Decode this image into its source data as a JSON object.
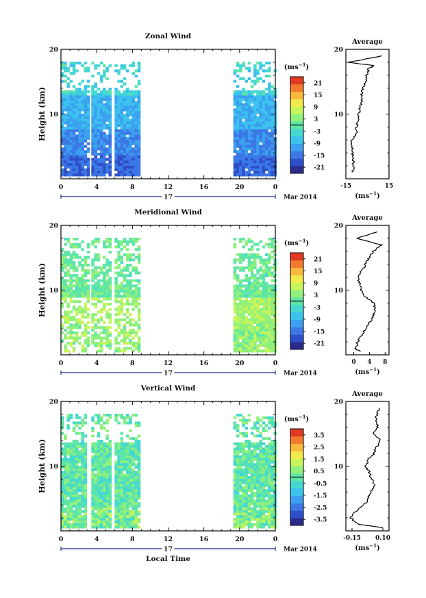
{
  "colors": {
    "colorbar": [
      "#2a2d8c",
      "#2f4fc8",
      "#3b78e6",
      "#3aa0ef",
      "#3dc1ee",
      "#45d8d0",
      "#5ee6a7",
      "#8ff07b",
      "#c6f55a",
      "#f4e94a",
      "#f8b83c",
      "#f27a2c",
      "#e03a22"
    ],
    "axis": "#000000",
    "time_axis_accent": "#1f2a8a"
  },
  "chart_data": [
    {
      "type": "heatmap",
      "title": "Zonal Wind",
      "ylabel": "Height (km)",
      "ylim": [
        0,
        20
      ],
      "y_ticks": [
        "10",
        "20"
      ],
      "xlim": [
        0,
        24
      ],
      "x_ticks": [
        "0",
        "4",
        "8",
        "12",
        "16",
        "20",
        "0"
      ],
      "date_label": "17",
      "month_label": "Mar 2014",
      "colorbar_unit": "(ms⁻¹)",
      "colorbar_ticks": [
        "21",
        "15",
        "9",
        "3",
        "-3",
        "-9",
        "-15",
        "-21"
      ],
      "colorbar_range": [
        -24,
        24
      ],
      "data_blocks_hours": [
        [
          0,
          2.9
        ],
        [
          3.4,
          5.4
        ],
        [
          6.0,
          8.6
        ],
        [
          19.3,
          24
        ]
      ],
      "profile": {
        "title": "Average",
        "x_ticks": [
          "-15",
          "15"
        ],
        "xlim": [
          -15,
          15
        ],
        "xlabel": "(ms⁻¹)",
        "y_ticks": [
          "10",
          "20"
        ],
        "heights": [
          1,
          2,
          3,
          4,
          5,
          6,
          7,
          8,
          9,
          10,
          11,
          12,
          13,
          14,
          15,
          16,
          17,
          17.5,
          18,
          19
        ],
        "values": [
          -10.5,
          -9.5,
          -10,
          -10.5,
          -10.5,
          -11,
          -8,
          -7.5,
          -6.5,
          -6,
          -5,
          -4,
          -4.5,
          -3,
          -1,
          -0.5,
          1,
          4,
          -13,
          10
        ]
      }
    },
    {
      "type": "heatmap",
      "title": "Meridional Wind",
      "ylabel": "Height (km)",
      "ylim": [
        0,
        20
      ],
      "y_ticks": [
        "10",
        "20"
      ],
      "xlim": [
        0,
        24
      ],
      "x_ticks": [
        "0",
        "4",
        "8",
        "12",
        "16",
        "20",
        "0"
      ],
      "date_label": "17",
      "month_label": "Mar 2014",
      "colorbar_unit": "(ms⁻¹)",
      "colorbar_ticks": [
        "21",
        "15",
        "9",
        "3",
        "-3",
        "-9",
        "-15",
        "-21"
      ],
      "colorbar_range": [
        -24,
        24
      ],
      "data_blocks_hours": [
        [
          0,
          2.9
        ],
        [
          3.4,
          5.4
        ],
        [
          6.0,
          8.6
        ],
        [
          19.3,
          24
        ]
      ],
      "profile": {
        "title": "Average",
        "x_ticks": [
          "0",
          "4",
          "8"
        ],
        "xlim": [
          -2,
          9
        ],
        "xlabel": "(ms⁻¹)",
        "y_ticks": [
          "10",
          "20"
        ],
        "heights": [
          0.5,
          1,
          2,
          3,
          4,
          5,
          6,
          7,
          8,
          9,
          10,
          11,
          12,
          13,
          14,
          15,
          16,
          17,
          18,
          19
        ],
        "values": [
          1.5,
          0.5,
          1,
          2,
          3,
          4,
          5,
          5.5,
          5,
          3,
          2,
          1.5,
          1,
          2,
          3,
          4,
          5,
          7,
          1,
          6
        ]
      }
    },
    {
      "type": "heatmap",
      "title": "Vertical Wind",
      "ylabel": "Height (km)",
      "ylim": [
        0,
        20
      ],
      "y_ticks": [
        "10",
        "20"
      ],
      "xlim": [
        0,
        24
      ],
      "x_ticks": [
        "0",
        "4",
        "8",
        "12",
        "16",
        "20",
        "0"
      ],
      "date_label": "17",
      "month_label": "Mar 2014",
      "xlabel": "Local Time",
      "colorbar_unit": "(ms⁻¹)",
      "colorbar_ticks": [
        "3.5",
        "2.5",
        "1.5",
        "0.5",
        "-0.5",
        "-1.5",
        "-2.5",
        "-3.5"
      ],
      "colorbar_range": [
        -4,
        4
      ],
      "data_blocks_hours": [
        [
          0,
          2.6
        ],
        [
          3.4,
          5.4
        ],
        [
          6.0,
          8.6
        ],
        [
          19.3,
          24
        ]
      ],
      "profile": {
        "title": "Average",
        "x_ticks": [
          "-0.15",
          "0.10"
        ],
        "xlim": [
          -0.2,
          0.15
        ],
        "xlabel": "(ms⁻¹)",
        "y_ticks": [
          "10",
          "20"
        ],
        "heights": [
          0.5,
          1,
          2,
          3,
          4,
          5,
          6,
          7,
          8,
          9,
          10,
          11,
          12,
          13,
          14,
          15,
          16,
          17,
          18,
          19
        ],
        "values": [
          0.1,
          -0.1,
          -0.16,
          -0.12,
          -0.05,
          -0.02,
          0.0,
          0.03,
          0.01,
          -0.01,
          -0.04,
          -0.02,
          0.03,
          0.05,
          0.08,
          0.02,
          0.06,
          0.04,
          0.05,
          0.07
        ]
      }
    }
  ]
}
